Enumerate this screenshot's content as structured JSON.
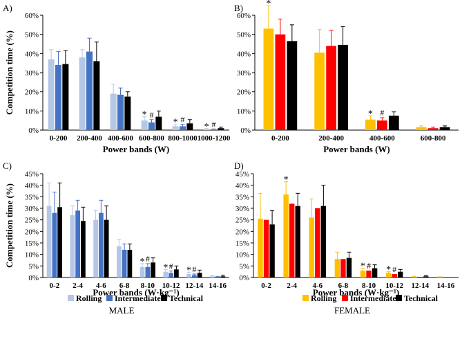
{
  "colors": {
    "male_rolling": "#b4c7e7",
    "male_intermediate": "#4472c4",
    "female_rolling": "#ffc000",
    "female_intermediate": "#ff0000",
    "technical": "#000000"
  },
  "legend": {
    "male": {
      "items": [
        "Rolling",
        "Intermediate",
        "Technical"
      ],
      "group_label": "MALE"
    },
    "female": {
      "items": [
        "Rolling",
        "Intermediate",
        "Technical"
      ],
      "group_label": "FEMALE"
    }
  },
  "chart_data": [
    {
      "id": "A",
      "panel_label": "A)",
      "type": "bar",
      "ylabel": "Competition time (%)",
      "xlabel": "Power bands (W)",
      "ylim": [
        0,
        60
      ],
      "yticks": [
        "0%",
        "10%",
        "20%",
        "30%",
        "40%",
        "50%",
        "60%"
      ],
      "categories": [
        "0-200",
        "200-400",
        "400-600",
        "600-800",
        "800-1000",
        "1000-1200"
      ],
      "series": [
        {
          "name": "Rolling",
          "values": [
            37,
            38,
            19,
            5,
            2,
            0.5
          ],
          "errors": [
            5,
            4,
            5,
            2,
            1,
            0.3
          ]
        },
        {
          "name": "Intermediate",
          "values": [
            34,
            41,
            18.5,
            4,
            2,
            0.3
          ],
          "errors": [
            7,
            7,
            3.5,
            1.5,
            1,
            0.3
          ]
        },
        {
          "name": "Technical",
          "values": [
            34.5,
            36,
            17.5,
            7,
            3.5,
            1
          ],
          "errors": [
            7,
            10,
            2.5,
            3,
            2,
            0.5
          ]
        }
      ],
      "annotations": [
        {
          "category": 3,
          "series": 0,
          "text": "*"
        },
        {
          "category": 3,
          "series": 1,
          "text": "#"
        },
        {
          "category": 4,
          "series": 0,
          "text": "*"
        },
        {
          "category": 4,
          "series": 1,
          "text": "#"
        },
        {
          "category": 5,
          "series": 0,
          "text": "*"
        },
        {
          "category": 5,
          "series": 1,
          "text": "#"
        }
      ]
    },
    {
      "id": "B",
      "panel_label": "B)",
      "type": "bar",
      "ylabel": "",
      "xlabel": "Power bands (W)",
      "ylim": [
        0,
        60
      ],
      "yticks": [
        "0%",
        "10%",
        "20%",
        "30%",
        "40%",
        "50%",
        "60%"
      ],
      "categories": [
        "0-200",
        "200-400",
        "400-600",
        "600-800"
      ],
      "series": [
        {
          "name": "Rolling",
          "values": [
            53,
            40.5,
            5.5,
            1.5
          ],
          "errors": [
            12,
            12,
            2,
            0.7
          ]
        },
        {
          "name": "Intermediate",
          "values": [
            50,
            44,
            5,
            1
          ],
          "errors": [
            8,
            8,
            1.5,
            0.5
          ]
        },
        {
          "name": "Technical",
          "values": [
            46.5,
            44.5,
            7.5,
            1.5
          ],
          "errors": [
            8.5,
            9.5,
            2,
            0.7
          ]
        }
      ],
      "annotations": [
        {
          "category": 0,
          "series": 0,
          "text": "*"
        },
        {
          "category": 2,
          "series": 0,
          "text": "*"
        },
        {
          "category": 2,
          "series": 1,
          "text": "#"
        }
      ]
    },
    {
      "id": "C",
      "panel_label": "C)",
      "type": "bar",
      "ylabel": "Competition time (%)",
      "xlabel": "Power bands (W·kg⁻¹)",
      "ylim": [
        0,
        45
      ],
      "yticks": [
        "0%",
        "5%",
        "10%",
        "15%",
        "20%",
        "25%",
        "30%",
        "35%",
        "40%",
        "45%"
      ],
      "categories": [
        "0-2",
        "2-4",
        "4-6",
        "6-8",
        "8-10",
        "10-12",
        "12-14",
        "14-16"
      ],
      "series": [
        {
          "name": "Rolling",
          "values": [
            31,
            27,
            25,
            13.5,
            4.5,
            2.5,
            1.5,
            0.5
          ],
          "errors": [
            10,
            4,
            4,
            3,
            1.5,
            1,
            0.8,
            0.3
          ]
        },
        {
          "name": "Intermediate",
          "values": [
            28,
            29,
            28,
            12,
            4.5,
            2,
            1,
            0.3
          ],
          "errors": [
            9,
            4.5,
            5.5,
            2.5,
            1.5,
            0.8,
            0.5,
            0.2
          ]
        },
        {
          "name": "Technical",
          "values": [
            30.5,
            24.5,
            25,
            12,
            6.5,
            3.5,
            2,
            0.5
          ],
          "errors": [
            10.5,
            6,
            6,
            2.5,
            2,
            1.5,
            1.2,
            0.5
          ]
        }
      ],
      "annotations": [
        {
          "category": 4,
          "series": 0,
          "text": "*"
        },
        {
          "category": 4,
          "series": 1,
          "text": "#"
        },
        {
          "category": 5,
          "series": 0,
          "text": "*"
        },
        {
          "category": 5,
          "series": 1,
          "text": "#"
        },
        {
          "category": 6,
          "series": 0,
          "text": "*"
        },
        {
          "category": 6,
          "series": 1,
          "text": "#"
        }
      ]
    },
    {
      "id": "D",
      "panel_label": "D)",
      "type": "bar",
      "ylabel": "",
      "xlabel": "Power bands (W·kg⁻¹)",
      "ylim": [
        0,
        45
      ],
      "yticks": [
        "0%",
        "5%",
        "10%",
        "15%",
        "20%",
        "25%",
        "30%",
        "35%",
        "40%",
        "45%"
      ],
      "categories": [
        "0-2",
        "2-4",
        "4-6",
        "6-8",
        "8-10",
        "10-12",
        "12-14",
        "14-16"
      ],
      "series": [
        {
          "name": "Rolling",
          "values": [
            25.5,
            36,
            26,
            8,
            3,
            2,
            0.3,
            0.2
          ],
          "errors": [
            11,
            5.5,
            8,
            3,
            1,
            0.5,
            0.2,
            0.1
          ]
        },
        {
          "name": "Intermediate",
          "values": [
            25,
            32,
            30,
            8,
            3,
            1.5,
            0.3,
            0
          ]
        },
        {
          "name": "Technical",
          "values": [
            23,
            31,
            31,
            8.5,
            4,
            2.5,
            0.5,
            0
          ],
          "errors": [
            6,
            5.5,
            9,
            2.5,
            1.5,
            1,
            0.3,
            0
          ]
        }
      ],
      "annotations": [
        {
          "category": 1,
          "series": 0,
          "text": "*"
        },
        {
          "category": 4,
          "series": 0,
          "text": "*"
        },
        {
          "category": 4,
          "series": 1,
          "text": "#"
        },
        {
          "category": 5,
          "series": 0,
          "text": "*"
        },
        {
          "category": 5,
          "series": 1,
          "text": "#"
        }
      ]
    }
  ]
}
